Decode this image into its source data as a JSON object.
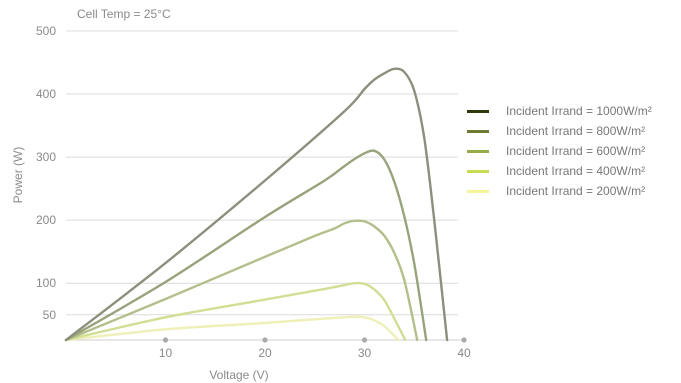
{
  "chart_data": {
    "type": "line",
    "annotation": "Cell Temp = 25°C",
    "xlabel": "Voltage (V)",
    "ylabel": "Power (W)",
    "xlim": [
      0,
      40
    ],
    "ylim": [
      10,
      500
    ],
    "x_ticks": [
      10,
      20,
      30,
      40
    ],
    "y_ticks": [
      50,
      100,
      200,
      300,
      400,
      500
    ],
    "grid": "horizontal",
    "legend_position": "right",
    "series": [
      {
        "name": "Incident Irrand = 1000W/m²",
        "color": "#2f3a12",
        "x": [
          0,
          10,
          20,
          28,
          30,
          31,
          32,
          33,
          34,
          35,
          36,
          37,
          38.3
        ],
        "y": [
          10,
          132,
          263,
          373,
          408,
          423,
          433,
          440,
          435,
          405,
          331,
          201,
          10
        ],
        "curve_color": "#8d8f7d"
      },
      {
        "name": "Incident Irrand = 800W/m²",
        "color": "#6b7b31",
        "x": [
          0,
          10,
          20,
          26,
          28,
          29,
          30,
          31,
          32,
          33,
          34,
          35,
          36.2
        ],
        "y": [
          10,
          102,
          205,
          263,
          286,
          297,
          306,
          310,
          296,
          261,
          206,
          131,
          10
        ],
        "curve_color": "#98a37c"
      },
      {
        "name": "Incident Irrand = 600W/m²",
        "color": "#96ab4a",
        "x": [
          0,
          10,
          20,
          25,
          27,
          28,
          29,
          30,
          31,
          32,
          33,
          34,
          35.3
        ],
        "y": [
          10,
          75,
          142,
          175,
          187,
          195,
          199,
          198,
          190,
          175,
          148,
          105,
          10
        ],
        "curve_color": "#b2bf8a"
      },
      {
        "name": "Incident Irrand = 400W/m²",
        "color": "#c8dc52",
        "x": [
          0,
          10,
          20,
          26,
          28,
          29,
          30,
          31,
          32,
          33,
          34.1
        ],
        "y": [
          10,
          46,
          74,
          91,
          97,
          100,
          99,
          90,
          73,
          44,
          10
        ],
        "curve_color": "#d1de93"
      },
      {
        "name": "Incident Irrand = 200W/m²",
        "color": "#f4f49a",
        "x": [
          0,
          10,
          20,
          26,
          28,
          29,
          30,
          31,
          32,
          33.4
        ],
        "y": [
          10,
          27,
          37,
          44,
          46,
          47,
          46,
          41,
          32,
          10
        ],
        "curve_color": "#eef0b8"
      }
    ]
  }
}
